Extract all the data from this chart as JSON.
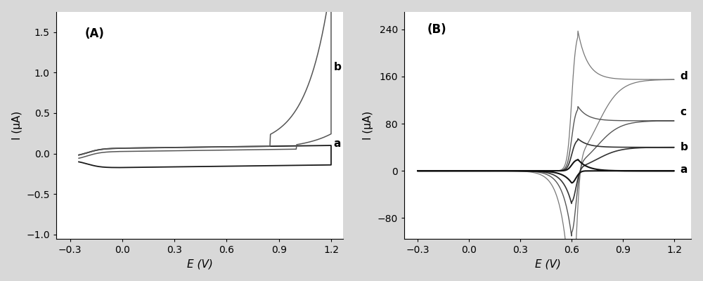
{
  "panel_A": {
    "label": "(A)",
    "xlabel": "E (V)",
    "ylabel": "I (μA)",
    "xlim": [
      -0.38,
      1.27
    ],
    "ylim": [
      -1.05,
      1.75
    ],
    "yticks": [
      -1.0,
      -0.5,
      0.0,
      0.5,
      1.0,
      1.5
    ],
    "xticks": [
      -0.3,
      0.0,
      0.3,
      0.6,
      0.9,
      1.2
    ]
  },
  "panel_B": {
    "label": "(B)",
    "xlabel": "E (V)",
    "ylabel": "I (μA)",
    "xlim": [
      -0.38,
      1.3
    ],
    "ylim": [
      -115,
      270
    ],
    "yticks": [
      -80,
      0,
      80,
      160,
      240
    ],
    "xticks": [
      -0.3,
      0.0,
      0.3,
      0.6,
      0.9,
      1.2
    ]
  },
  "bg_color": "#d8d8d8",
  "axes_bg": "#ffffff",
  "fs_label": 11,
  "fs_tick": 10,
  "fs_panel": 12,
  "fs_curve_label": 11
}
